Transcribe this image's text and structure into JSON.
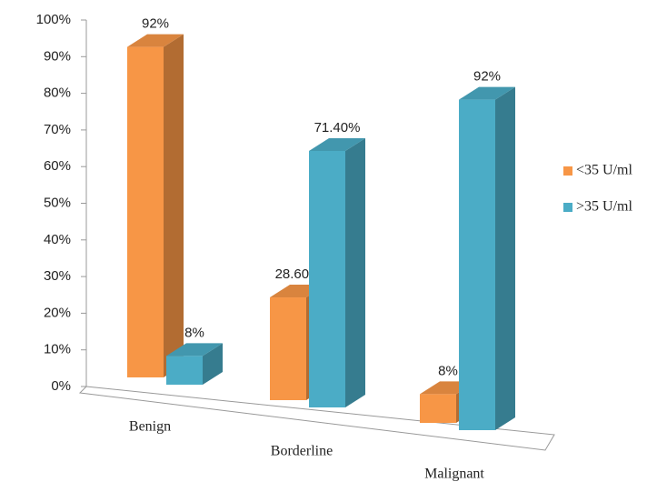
{
  "chart_data": {
    "type": "bar3d",
    "categories": [
      "Benign",
      "Borderline",
      "Malignant"
    ],
    "series": [
      {
        "name": "<35 U/ml",
        "color": "#f79646",
        "values": [
          92,
          28.6,
          8
        ],
        "value_labels": [
          "92%",
          "28.60%",
          "8%"
        ]
      },
      {
        "name": ">35 U/ml",
        "color": "#4bacc6",
        "values": [
          8,
          71.4,
          92
        ],
        "value_labels": [
          "8%",
          "71.40%",
          "92%"
        ]
      }
    ],
    "ylim": [
      0,
      100
    ],
    "yticks": [
      {
        "value": 0,
        "label": "0%"
      },
      {
        "value": 10,
        "label": "10%"
      },
      {
        "value": 20,
        "label": "20%"
      },
      {
        "value": 30,
        "label": "30%"
      },
      {
        "value": 40,
        "label": "40%"
      },
      {
        "value": 50,
        "label": "50%"
      },
      {
        "value": 60,
        "label": "60%"
      },
      {
        "value": 70,
        "label": "70%"
      },
      {
        "value": 80,
        "label": "80%"
      },
      {
        "value": 90,
        "label": "90%"
      },
      {
        "value": 100,
        "label": "100%"
      }
    ],
    "legend": "right"
  }
}
